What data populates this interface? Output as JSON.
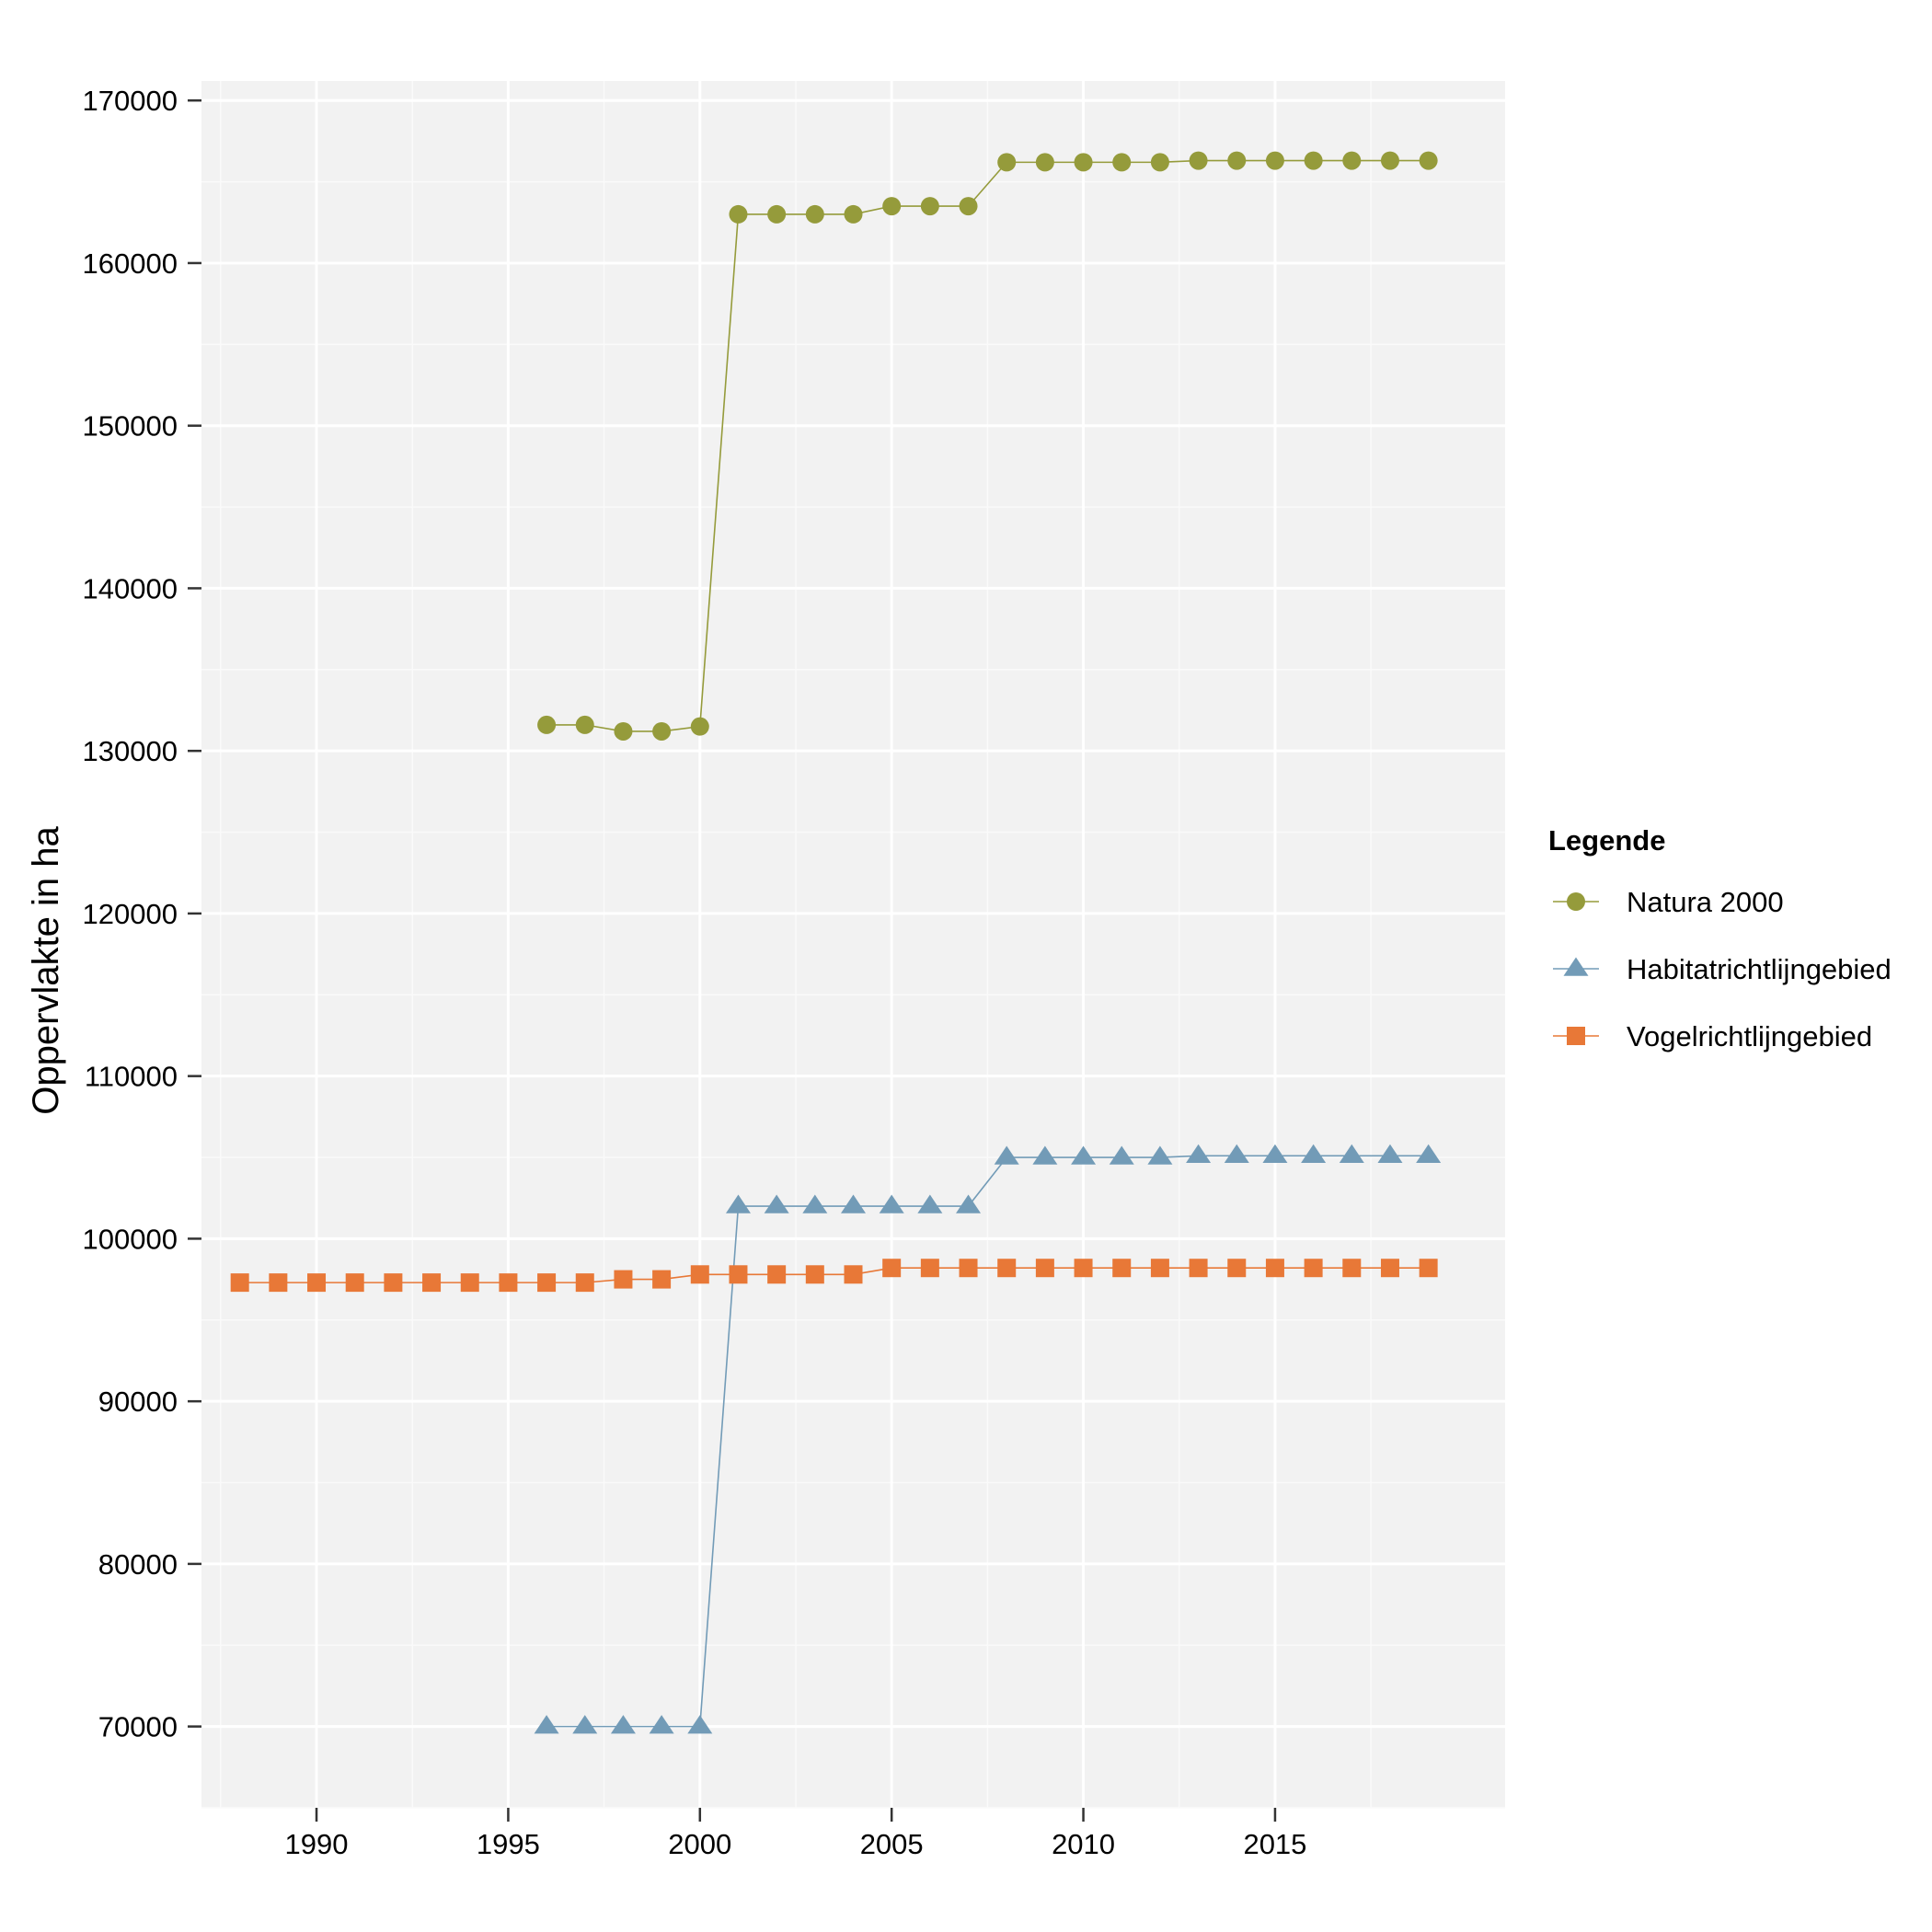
{
  "chart_data": {
    "type": "line",
    "title": "",
    "xlabel": "",
    "ylabel": "Oppervlakte in ha",
    "xlim": [
      1987,
      2021
    ],
    "ylim": [
      65000,
      171200
    ],
    "x_ticks": [
      1990,
      1995,
      2000,
      2005,
      2010,
      2015
    ],
    "y_ticks": [
      70000,
      80000,
      90000,
      100000,
      110000,
      120000,
      130000,
      140000,
      150000,
      160000,
      170000
    ],
    "x_tick_labels": [
      "1990",
      "1995",
      "2000",
      "2005",
      "2010",
      "2015"
    ],
    "y_tick_labels": [
      "70000",
      "80000",
      "90000",
      "100000",
      "110000",
      "120000",
      "130000",
      "140000",
      "150000",
      "160000",
      "170000"
    ],
    "grid": true,
    "legend": {
      "title": "Legende",
      "position": "right"
    },
    "series": [
      {
        "name": "Natura 2000",
        "color": "#959B3B",
        "marker": "circle",
        "x": [
          1996,
          1997,
          1998,
          1999,
          2000,
          2001,
          2002,
          2003,
          2004,
          2005,
          2006,
          2007,
          2008,
          2009,
          2010,
          2011,
          2012,
          2013,
          2014,
          2015,
          2016,
          2017,
          2018,
          2019
        ],
        "values": [
          131600,
          131600,
          131200,
          131200,
          131500,
          163000,
          163000,
          163000,
          163000,
          163500,
          163500,
          163500,
          166200,
          166200,
          166200,
          166200,
          166200,
          166300,
          166300,
          166300,
          166300,
          166300,
          166300,
          166300
        ]
      },
      {
        "name": "Habitatrichtlijngebied",
        "color": "#729BB7",
        "marker": "triangle",
        "x": [
          1996,
          1997,
          1998,
          1999,
          2000,
          2001,
          2002,
          2003,
          2004,
          2005,
          2006,
          2007,
          2008,
          2009,
          2010,
          2011,
          2012,
          2013,
          2014,
          2015,
          2016,
          2017,
          2018,
          2019
        ],
        "values": [
          70000,
          70000,
          70000,
          70000,
          70000,
          102000,
          102000,
          102000,
          102000,
          102000,
          102000,
          102000,
          105000,
          105000,
          105000,
          105000,
          105000,
          105100,
          105100,
          105100,
          105100,
          105100,
          105100,
          105100
        ]
      },
      {
        "name": "Vogelrichtlijngebied",
        "color": "#E87837",
        "marker": "square",
        "x": [
          1988,
          1989,
          1990,
          1991,
          1992,
          1993,
          1994,
          1995,
          1996,
          1997,
          1998,
          1999,
          2000,
          2001,
          2002,
          2003,
          2004,
          2005,
          2006,
          2007,
          2008,
          2009,
          2010,
          2011,
          2012,
          2013,
          2014,
          2015,
          2016,
          2017,
          2018,
          2019
        ],
        "values": [
          97300,
          97300,
          97300,
          97300,
          97300,
          97300,
          97300,
          97300,
          97300,
          97300,
          97500,
          97500,
          97800,
          97800,
          97800,
          97800,
          97800,
          98200,
          98200,
          98200,
          98200,
          98200,
          98200,
          98200,
          98200,
          98200,
          98200,
          98200,
          98200,
          98200,
          98200,
          98200
        ]
      }
    ]
  }
}
